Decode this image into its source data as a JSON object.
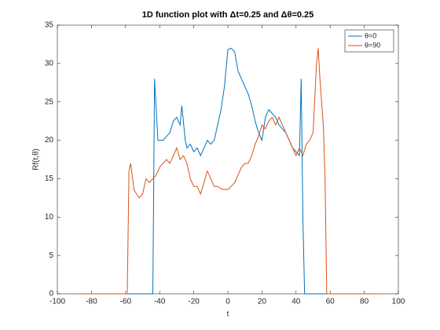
{
  "chart_data": {
    "type": "line",
    "title": "1D function plot with Δt=0.25 and Δθ=0.25",
    "xlabel": "t",
    "ylabel": "Rf(t,θ)",
    "xlim": [
      -100,
      100
    ],
    "xticks": [
      -100,
      -80,
      -60,
      -40,
      -20,
      0,
      20,
      40,
      60,
      80,
      100
    ],
    "ylim": [
      0,
      35
    ],
    "yticks": [
      0,
      5,
      10,
      15,
      20,
      25,
      30,
      35
    ],
    "legend": "northeast",
    "series": [
      {
        "name": "θ=0",
        "color": "#0072bd",
        "x": [
          -90,
          -44,
          -43,
          -41,
          -38,
          -36,
          -34,
          -32,
          -30,
          -28,
          -27,
          -25,
          -24,
          -22,
          -20,
          -18,
          -16,
          -14,
          -12,
          -10,
          -8,
          -6,
          -4,
          -2,
          0,
          2,
          4,
          6,
          8,
          10,
          12,
          14,
          16,
          18,
          20,
          22,
          24,
          26,
          28,
          30,
          32,
          34,
          36,
          38,
          40,
          42,
          43,
          44,
          45,
          90
        ],
        "values": [
          0,
          0,
          28,
          20,
          20,
          20.5,
          21,
          22.5,
          23,
          22,
          24.5,
          20,
          19,
          19.5,
          18.5,
          19,
          18,
          19,
          20,
          19.5,
          20,
          22,
          24,
          27,
          31.8,
          32,
          31.5,
          29,
          28,
          27,
          26,
          24.5,
          22.5,
          21,
          20,
          23,
          24,
          23.5,
          23,
          22,
          21.5,
          21,
          20,
          19,
          18.5,
          18,
          28,
          10,
          0,
          0
        ]
      },
      {
        "name": "θ=90",
        "color": "#d95319",
        "x": [
          -90,
          -59,
          -58,
          -57,
          -55,
          -52,
          -50,
          -48,
          -46,
          -44,
          -42,
          -40,
          -36,
          -34,
          -32,
          -30,
          -28,
          -26,
          -24,
          -22,
          -20,
          -18,
          -16,
          -14,
          -12,
          -8,
          -6,
          -4,
          -2,
          0,
          2,
          4,
          6,
          8,
          10,
          12,
          14,
          16,
          18,
          20,
          22,
          24,
          26,
          28,
          30,
          32,
          34,
          36,
          38,
          40,
          42,
          44,
          46,
          48,
          50,
          52,
          53,
          54,
          56,
          57,
          58,
          90
        ],
        "values": [
          0,
          0,
          16,
          17,
          13.5,
          12.5,
          13,
          15,
          14.5,
          15,
          15.5,
          16.5,
          17.5,
          17,
          18,
          19,
          17.5,
          18,
          17,
          15,
          14,
          14,
          13,
          14.5,
          16,
          14,
          14,
          13.7,
          13.6,
          13.6,
          14,
          14.5,
          15.5,
          16.5,
          17,
          17,
          18,
          19.5,
          20.5,
          22,
          21.5,
          22.5,
          23,
          22,
          23,
          22,
          21,
          20,
          19,
          18,
          19,
          18,
          19.5,
          20,
          21,
          30,
          32,
          28,
          22,
          15,
          0,
          0
        ]
      }
    ]
  }
}
